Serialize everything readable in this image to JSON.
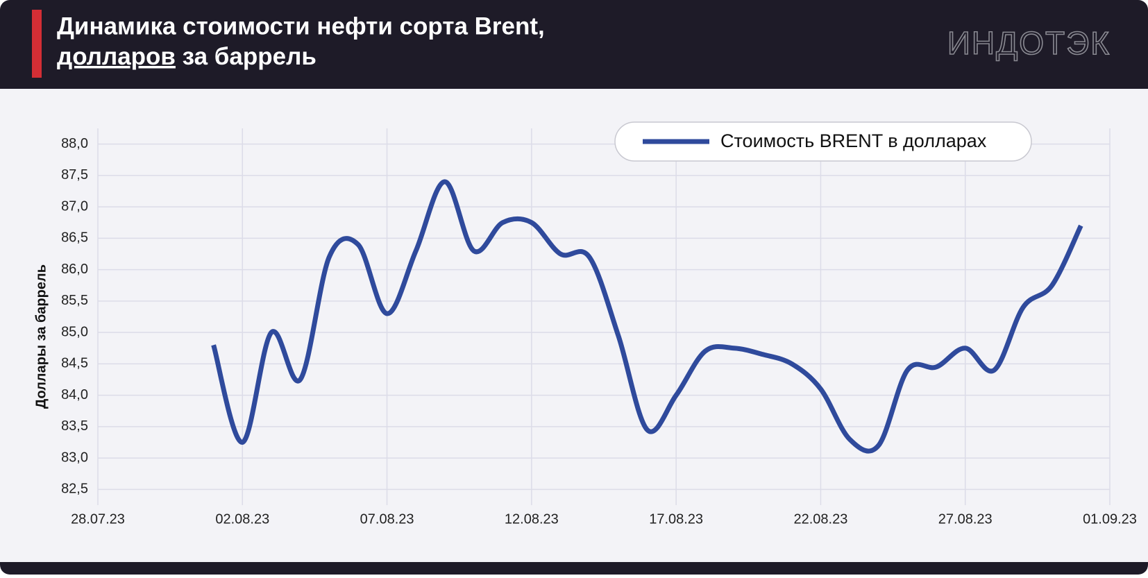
{
  "header": {
    "title_line1": "Динамика стоимости нефти сорта Brent,",
    "title_underlined": "долларов",
    "title_rest": "за баррель",
    "brand": "ИНДОТЭК"
  },
  "chart_data": {
    "type": "line",
    "y_label": "Доллары за баррель",
    "x": [
      "01.08.23",
      "02.08.23",
      "03.08.23",
      "04.08.23",
      "05.08.23",
      "06.08.23",
      "07.08.23",
      "08.08.23",
      "09.08.23",
      "10.08.23",
      "11.08.23",
      "12.08.23",
      "13.08.23",
      "14.08.23",
      "15.08.23",
      "16.08.23",
      "17.08.23",
      "18.08.23",
      "19.08.23",
      "20.08.23",
      "21.08.23",
      "22.08.23",
      "23.08.23",
      "24.08.23",
      "25.08.23",
      "26.08.23",
      "27.08.23",
      "28.08.23",
      "29.08.23",
      "30.08.23",
      "31.08.23"
    ],
    "series": [
      {
        "name": "Стоимость BRENT в долларах",
        "color": "#2f4a9c",
        "values": [
          84.8,
          83.25,
          85.0,
          84.25,
          86.2,
          86.4,
          85.3,
          86.3,
          87.4,
          86.3,
          86.75,
          86.75,
          86.25,
          86.2,
          84.95,
          83.45,
          84.0,
          84.7,
          84.75,
          84.65,
          84.5,
          84.1,
          83.3,
          83.2,
          84.4,
          84.45,
          84.75,
          84.4,
          85.4,
          85.75,
          86.7
        ]
      }
    ],
    "xlim": [
      "28.07.23",
      "01.09.23"
    ],
    "xticks": [
      "28.07.23",
      "02.08.23",
      "07.08.23",
      "12.08.23",
      "17.08.23",
      "22.08.23",
      "27.08.23",
      "01.09.23"
    ],
    "ylim": [
      82.25,
      88.25
    ],
    "yticks": [
      {
        "value": 82.5,
        "label": "82,5"
      },
      {
        "value": 83,
        "label": "83,0"
      },
      {
        "value": 83.5,
        "label": "83,5"
      },
      {
        "value": 84,
        "label": "84,0"
      },
      {
        "value": 84.5,
        "label": "84,5"
      },
      {
        "value": 85,
        "label": "85,0"
      },
      {
        "value": 85.5,
        "label": "85,5"
      },
      {
        "value": 86,
        "label": "86,0"
      },
      {
        "value": 86.5,
        "label": "86,5"
      },
      {
        "value": 87,
        "label": "87,0"
      },
      {
        "value": 87.5,
        "label": "87,5"
      },
      {
        "value": 88,
        "label": "88,0"
      }
    ],
    "grid": true,
    "legend": "top-right"
  }
}
